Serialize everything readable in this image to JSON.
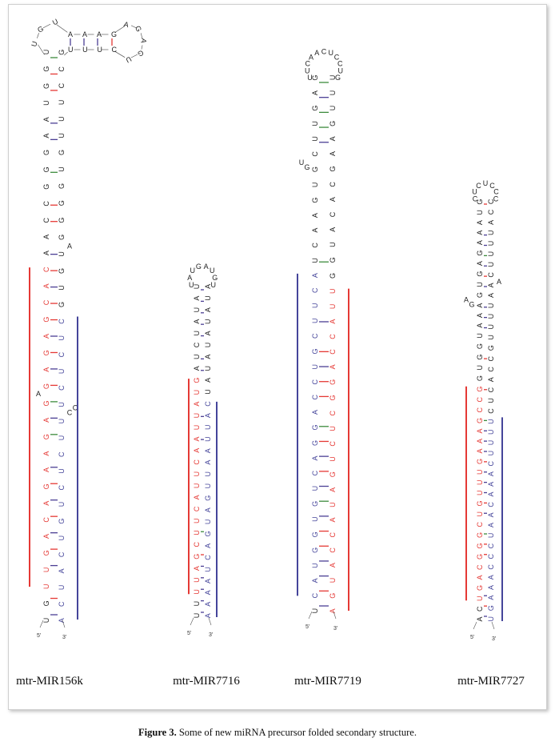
{
  "figure": {
    "caption_label": "Figure 3.",
    "caption_text": " Some of new miRNA precursor folded secondary structure.",
    "colors": {
      "mature_5p_red": "#e53935",
      "star_blue": "#45459a",
      "base_black": "#222222",
      "bond_GC": "#e53935",
      "bond_AU": "#4b3f94",
      "bond_GU": "#3d8b3d"
    },
    "end_labels": {
      "five": "5'",
      "three": "3'"
    },
    "structures": [
      {
        "name": "mtr-MIR156k",
        "left": "UGUUGACAGAAGAGGAGAGCACAACCGGGAAUGGU",
        "right": "ACUACUGUCUCUUUCUCUCGUGUGGGGUGUUUCCG",
        "left_highlight": {
          "color": "red",
          "rows": [
            2,
            21
          ]
        },
        "right_highlight": {
          "color": "blue",
          "rows": [
            0,
            18
          ]
        },
        "bulges": [
          {
            "row": 14,
            "side": "left",
            "text": "A"
          },
          {
            "row": 13,
            "side": "right",
            "text": "CC"
          },
          {
            "row": 23,
            "side": "right",
            "text": "A"
          }
        ],
        "loop": "UGU",
        "arm": {
          "top": "AAAG",
          "bottom": "UUUC",
          "loop": "AGAGU"
        }
      },
      {
        "name": "mtr-MIR7716",
        "left": "UUUUAGCUUCAUUCAAUUAUGAUCUAUAU",
        "right": "AAAAUCAGUAGUUAAUUACUAUAUAUAUA",
        "left_highlight": {
          "color": "red",
          "rows": [
            2,
            20
          ]
        },
        "right_highlight": {
          "color": "blue",
          "rows": [
            0,
            18
          ]
        },
        "bulges": [],
        "loop": "UAUGAUGU"
      },
      {
        "name": "mtr-MIR7719",
        "left": "UCAUGGUGUCAGGACCUGCUUCAUCAAGUGCUUGAG",
        "right": "AGUACCAUAGUCUCGGACCAUUGGUACACGAAGUUU",
        "left_highlight": {
          "color": "blue",
          "rows": [
            1,
            22
          ]
        },
        "right_highlight": {
          "color": "red",
          "rows": [
            0,
            21
          ]
        },
        "bulges": [
          {
            "row": 30,
            "side": "left",
            "text": "GU"
          }
        ],
        "loop": "UUCAACUCCUG"
      },
      {
        "name": "mtr-MIR7727",
        "left": "ACUGACGGGCUGUUUGAAAGCCGGUGGUAAAGUGAGAAAUG",
        "right": "UGAAACCCUAACAAACUUUUCUCACCGUUUUAACUUUUACC",
        "left_highlight": {
          "color": "red",
          "rows": [
            2,
            22
          ]
        },
        "right_highlight": {
          "color": "blue",
          "rows": [
            0,
            19
          ]
        },
        "bulges": [
          {
            "row": 31,
            "side": "left",
            "text": "GA"
          },
          {
            "row": 33,
            "side": "right",
            "text": "A"
          }
        ],
        "loop": "CUCUCCC"
      }
    ]
  }
}
